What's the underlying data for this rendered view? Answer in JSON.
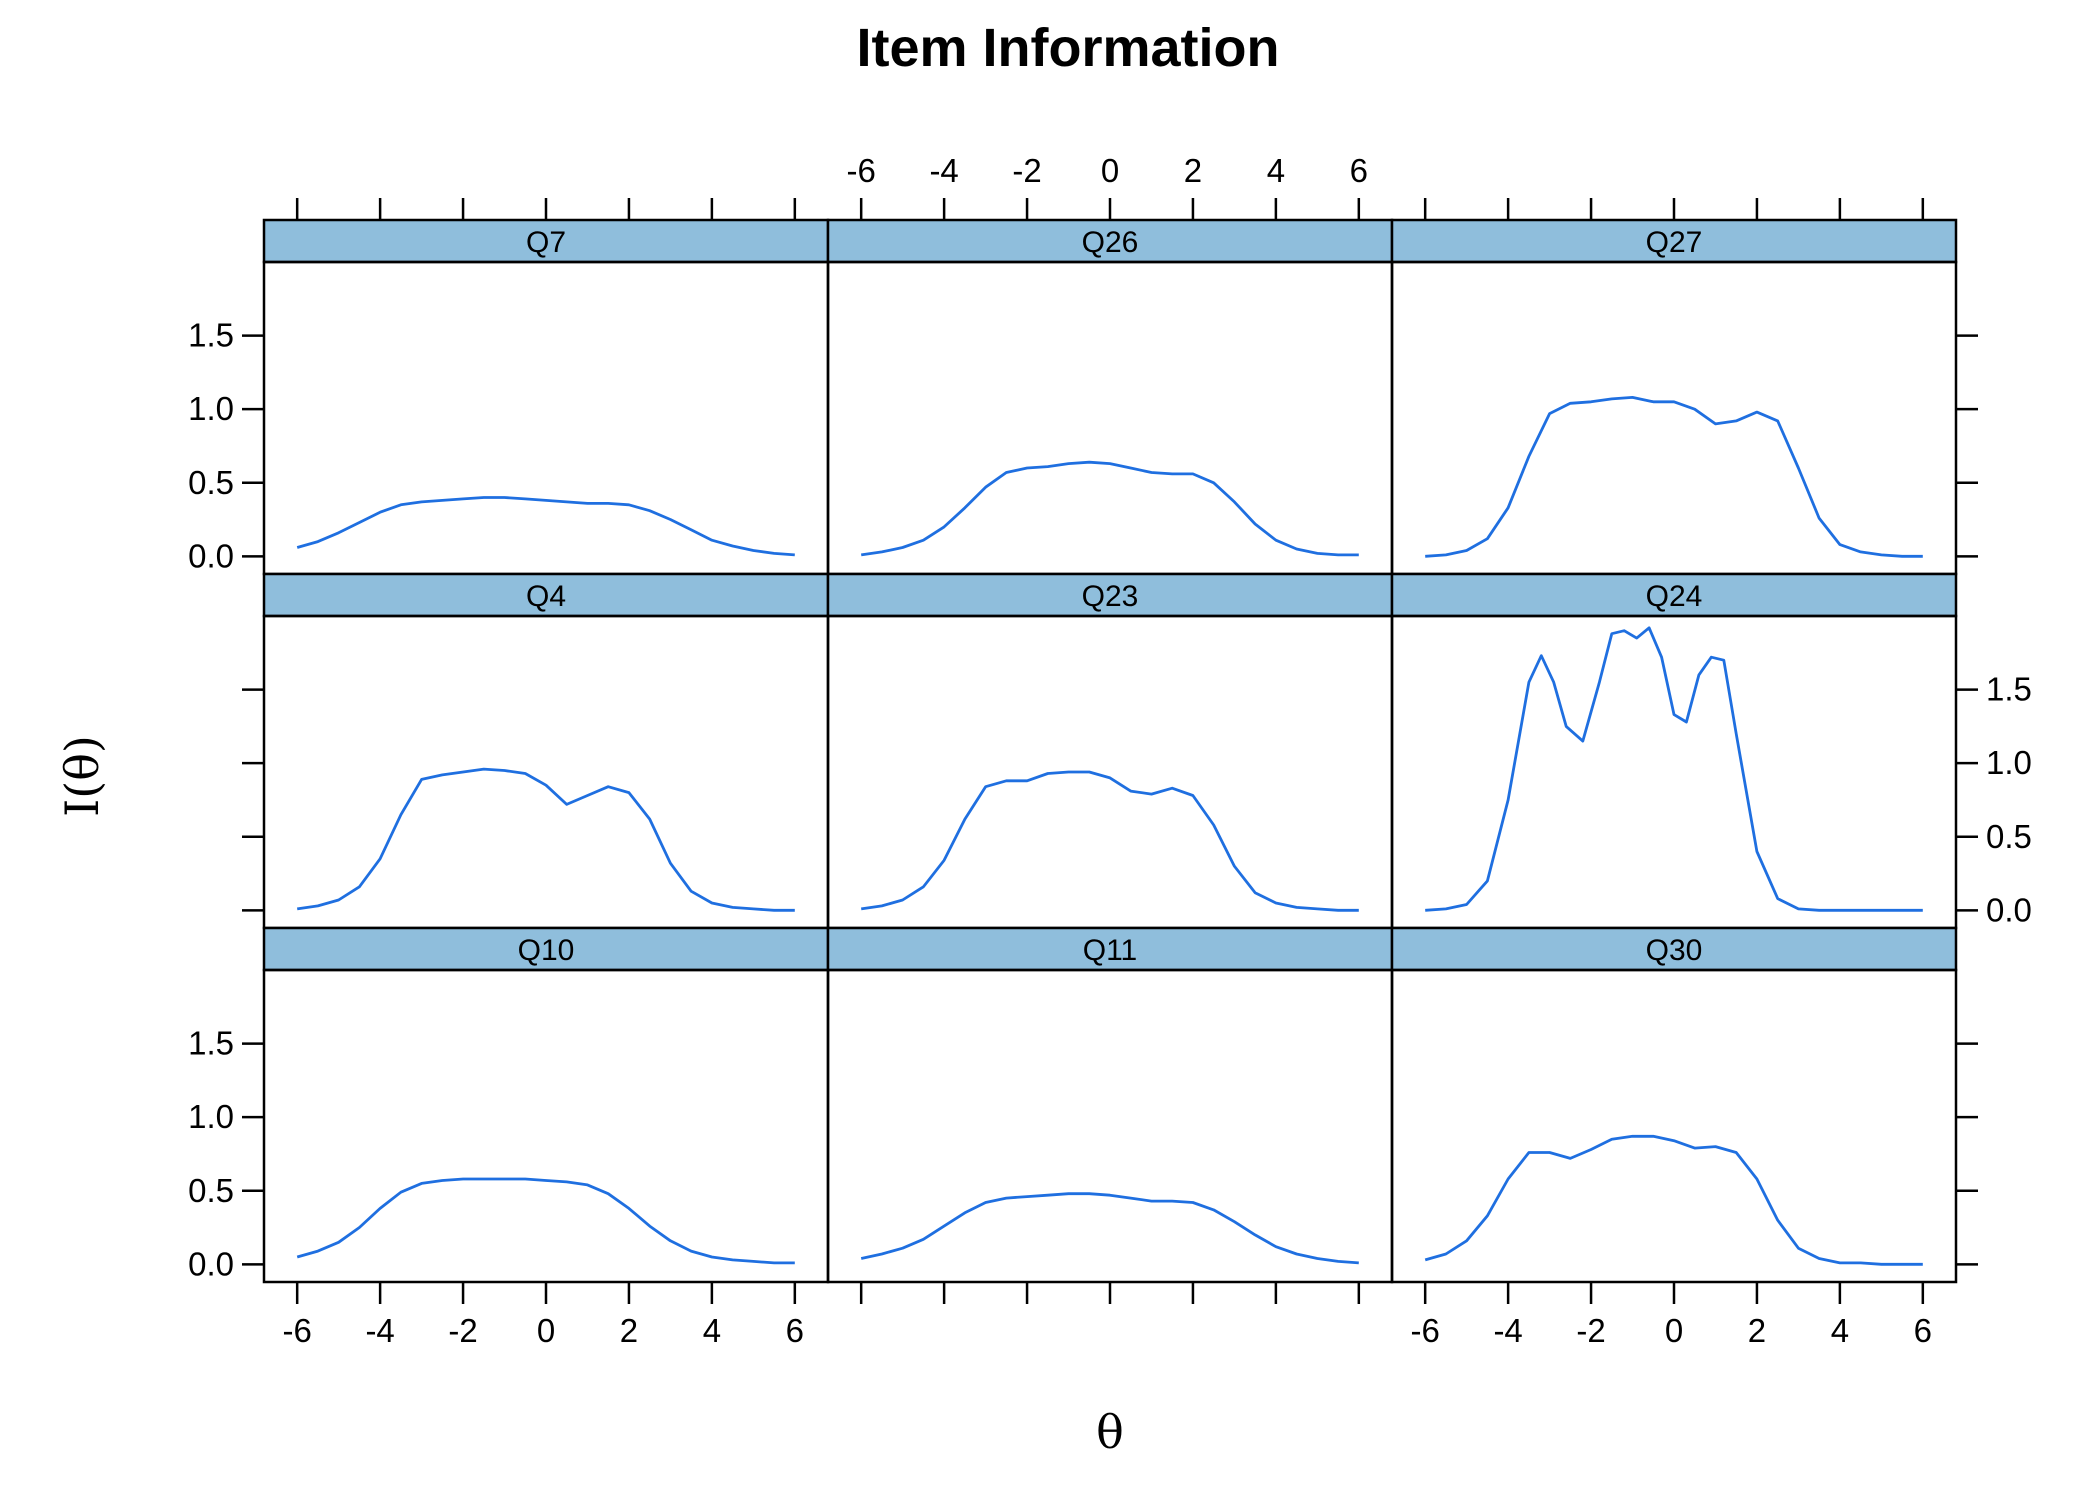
{
  "chart_data": {
    "type": "line",
    "title": "Item Information",
    "xlabel": "θ",
    "ylabel": "I(θ)",
    "xlim": [
      -6.8,
      6.8
    ],
    "ylim": [
      -0.12,
      2.0
    ],
    "x_ticks": [
      -6,
      -4,
      -2,
      0,
      2,
      4,
      6
    ],
    "x_tick_labels": [
      "-6",
      "-4",
      "-2",
      "0",
      "2",
      "4",
      "6"
    ],
    "y_ticks": [
      0,
      0.5,
      1,
      1.5
    ],
    "y_tick_labels": [
      "0.0",
      "0.5",
      "1.0",
      "1.5"
    ],
    "layout": "3x3 lattice",
    "grid": false,
    "line_color": "#1f6fe0",
    "strip_color": "#8fbedc",
    "panels": [
      {
        "name": "Q7",
        "x": [
          -6,
          -5.5,
          -5,
          -4.5,
          -4,
          -3.5,
          -3,
          -2.5,
          -2,
          -1.5,
          -1,
          -0.5,
          0,
          0.5,
          1,
          1.5,
          2,
          2.5,
          3,
          3.5,
          4,
          4.5,
          5,
          5.5,
          6
        ],
        "values": [
          0.06,
          0.1,
          0.16,
          0.23,
          0.3,
          0.35,
          0.37,
          0.38,
          0.39,
          0.4,
          0.4,
          0.39,
          0.38,
          0.37,
          0.36,
          0.36,
          0.35,
          0.31,
          0.25,
          0.18,
          0.11,
          0.07,
          0.04,
          0.02,
          0.01
        ]
      },
      {
        "name": "Q26",
        "x": [
          -6,
          -5.5,
          -5,
          -4.5,
          -4,
          -3.5,
          -3,
          -2.5,
          -2,
          -1.5,
          -1,
          -0.5,
          0,
          0.5,
          1,
          1.5,
          2,
          2.5,
          3,
          3.5,
          4,
          4.5,
          5,
          5.5,
          6
        ],
        "values": [
          0.01,
          0.03,
          0.06,
          0.11,
          0.2,
          0.33,
          0.47,
          0.57,
          0.6,
          0.61,
          0.63,
          0.64,
          0.63,
          0.6,
          0.57,
          0.56,
          0.56,
          0.5,
          0.37,
          0.22,
          0.11,
          0.05,
          0.02,
          0.01,
          0.01
        ]
      },
      {
        "name": "Q27",
        "x": [
          -6,
          -5.5,
          -5,
          -4.5,
          -4,
          -3.5,
          -3,
          -2.5,
          -2,
          -1.5,
          -1,
          -0.5,
          0,
          0.5,
          1,
          1.5,
          2,
          2.5,
          3,
          3.5,
          4,
          4.5,
          5,
          5.5,
          6
        ],
        "values": [
          0.0,
          0.01,
          0.04,
          0.12,
          0.33,
          0.68,
          0.97,
          1.04,
          1.05,
          1.07,
          1.08,
          1.05,
          1.05,
          1.0,
          0.9,
          0.92,
          0.98,
          0.92,
          0.6,
          0.26,
          0.08,
          0.03,
          0.01,
          0.0,
          0.0
        ]
      },
      {
        "name": "Q4",
        "x": [
          -6,
          -5.5,
          -5,
          -4.5,
          -4,
          -3.5,
          -3,
          -2.5,
          -2,
          -1.5,
          -1,
          -0.5,
          0,
          0.5,
          1,
          1.5,
          2,
          2.5,
          3,
          3.5,
          4,
          4.5,
          5,
          5.5,
          6
        ],
        "values": [
          0.01,
          0.03,
          0.07,
          0.16,
          0.35,
          0.65,
          0.89,
          0.92,
          0.94,
          0.96,
          0.95,
          0.93,
          0.85,
          0.72,
          0.78,
          0.84,
          0.8,
          0.62,
          0.32,
          0.13,
          0.05,
          0.02,
          0.01,
          0.0,
          0.0
        ]
      },
      {
        "name": "Q23",
        "x": [
          -6,
          -5.5,
          -5,
          -4.5,
          -4,
          -3.5,
          -3,
          -2.5,
          -2,
          -1.5,
          -1,
          -0.5,
          0,
          0.5,
          1,
          1.5,
          2,
          2.5,
          3,
          3.5,
          4,
          4.5,
          5,
          5.5,
          6
        ],
        "values": [
          0.01,
          0.03,
          0.07,
          0.16,
          0.34,
          0.62,
          0.84,
          0.88,
          0.88,
          0.93,
          0.94,
          0.94,
          0.9,
          0.81,
          0.79,
          0.83,
          0.78,
          0.58,
          0.3,
          0.12,
          0.05,
          0.02,
          0.01,
          0.0,
          0.0
        ]
      },
      {
        "name": "Q24",
        "x": [
          -6,
          -5.5,
          -5,
          -4.5,
          -4,
          -3.5,
          -3.2,
          -2.9,
          -2.6,
          -2.2,
          -1.8,
          -1.5,
          -1.2,
          -0.9,
          -0.6,
          -0.3,
          0,
          0.3,
          0.6,
          0.9,
          1.2,
          1.5,
          2,
          2.5,
          3,
          3.5,
          4,
          4.5,
          5,
          5.5,
          6
        ],
        "values": [
          0.0,
          0.01,
          0.04,
          0.2,
          0.75,
          1.55,
          1.73,
          1.55,
          1.25,
          1.15,
          1.55,
          1.88,
          1.9,
          1.85,
          1.92,
          1.72,
          1.33,
          1.28,
          1.6,
          1.72,
          1.7,
          1.2,
          0.4,
          0.08,
          0.01,
          0.0,
          0.0,
          0.0,
          0.0,
          0.0,
          0.0
        ]
      },
      {
        "name": "Q10",
        "x": [
          -6,
          -5.5,
          -5,
          -4.5,
          -4,
          -3.5,
          -3,
          -2.5,
          -2,
          -1.5,
          -1,
          -0.5,
          0,
          0.5,
          1,
          1.5,
          2,
          2.5,
          3,
          3.5,
          4,
          4.5,
          5,
          5.5,
          6
        ],
        "values": [
          0.05,
          0.09,
          0.15,
          0.25,
          0.38,
          0.49,
          0.55,
          0.57,
          0.58,
          0.58,
          0.58,
          0.58,
          0.57,
          0.56,
          0.54,
          0.48,
          0.38,
          0.26,
          0.16,
          0.09,
          0.05,
          0.03,
          0.02,
          0.01,
          0.01
        ]
      },
      {
        "name": "Q11",
        "x": [
          -6,
          -5.5,
          -5,
          -4.5,
          -4,
          -3.5,
          -3,
          -2.5,
          -2,
          -1.5,
          -1,
          -0.5,
          0,
          0.5,
          1,
          1.5,
          2,
          2.5,
          3,
          3.5,
          4,
          4.5,
          5,
          5.5,
          6
        ],
        "values": [
          0.04,
          0.07,
          0.11,
          0.17,
          0.26,
          0.35,
          0.42,
          0.45,
          0.46,
          0.47,
          0.48,
          0.48,
          0.47,
          0.45,
          0.43,
          0.43,
          0.42,
          0.37,
          0.29,
          0.2,
          0.12,
          0.07,
          0.04,
          0.02,
          0.01
        ]
      },
      {
        "name": "Q30",
        "x": [
          -6,
          -5.5,
          -5,
          -4.5,
          -4,
          -3.5,
          -3,
          -2.5,
          -2,
          -1.5,
          -1,
          -0.5,
          0,
          0.5,
          1,
          1.5,
          2,
          2.5,
          3,
          3.5,
          4,
          4.5,
          5,
          5.5,
          6
        ],
        "values": [
          0.03,
          0.07,
          0.16,
          0.33,
          0.58,
          0.76,
          0.76,
          0.72,
          0.78,
          0.85,
          0.87,
          0.87,
          0.84,
          0.79,
          0.8,
          0.76,
          0.58,
          0.3,
          0.11,
          0.04,
          0.01,
          0.01,
          0.0,
          0.0,
          0.0
        ]
      }
    ]
  }
}
